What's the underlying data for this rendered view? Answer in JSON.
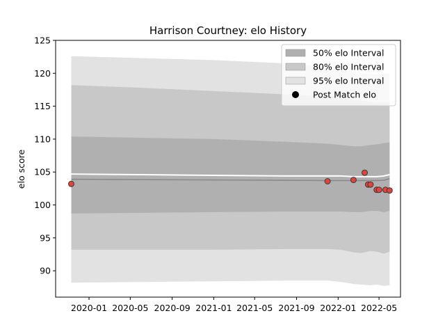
{
  "chart_data": {
    "type": "line",
    "title": "Harrison Courtney: elo History",
    "xlabel": "",
    "ylabel": "elo score",
    "ylim": [
      86,
      125
    ],
    "xlim": [
      "2019-09-25",
      "2022-07-03"
    ],
    "y_ticks": [
      90,
      95,
      100,
      105,
      110,
      115,
      120,
      125
    ],
    "x_ticks": [
      "2020-01",
      "2020-05",
      "2020-09",
      "2021-01",
      "2021-05",
      "2021-09",
      "2022-01",
      "2022-05"
    ],
    "grid": false,
    "legend": {
      "placement": "top-right",
      "entries": [
        {
          "label": "50% elo Interval",
          "color": "#b0b0b0",
          "kind": "band"
        },
        {
          "label": "80% elo Interval",
          "color": "#c8c8c8",
          "kind": "band"
        },
        {
          "label": "95% elo Interval",
          "color": "#e2e2e2",
          "kind": "band"
        },
        {
          "label": "Post Match elo",
          "color": "#000000",
          "kind": "marker"
        }
      ]
    },
    "colors": {
      "band95": "#e2e2e2",
      "band80": "#c8c8c8",
      "band50": "#b0b0b0",
      "mean_line": "#ffffff",
      "median_line": "#888888",
      "point_fill": "#e0443c",
      "point_edge": "#3a3a3a"
    },
    "bands": {
      "x": [
        "2019-11-10",
        "2020-06-01",
        "2021-01-01",
        "2021-08-01",
        "2021-12-01",
        "2022-01-10",
        "2022-02-15",
        "2022-03-10",
        "2022-04-05",
        "2022-04-25",
        "2022-05-15",
        "2022-06-01"
      ],
      "band95_upper": [
        122.6,
        122.3,
        122.0,
        121.5,
        121.0,
        120.6,
        120.2,
        120.0,
        119.9,
        119.8,
        119.9,
        120.0
      ],
      "band95_lower": [
        88.2,
        88.3,
        88.4,
        88.5,
        88.5,
        88.3,
        88.0,
        87.9,
        87.8,
        87.9,
        87.7,
        87.8
      ],
      "band80_upper": [
        118.2,
        117.8,
        117.3,
        116.8,
        116.5,
        116.3,
        116.1,
        115.9,
        115.7,
        115.6,
        115.6,
        115.6
      ],
      "band80_lower": [
        93.2,
        93.2,
        93.2,
        93.3,
        93.3,
        93.2,
        92.8,
        92.7,
        93.0,
        92.9,
        92.6,
        92.9
      ],
      "band50_upper": [
        110.4,
        110.2,
        110.0,
        109.6,
        109.3,
        109.1,
        108.9,
        108.9,
        109.1,
        109.2,
        109.4,
        109.5
      ],
      "band50_lower": [
        98.7,
        98.8,
        98.9,
        99.0,
        99.0,
        99.0,
        98.9,
        98.9,
        99.1,
        99.1,
        98.9,
        99.1
      ]
    },
    "mean_line": {
      "x": [
        "2019-11-10",
        "2020-06-01",
        "2021-01-01",
        "2021-08-01",
        "2021-12-01",
        "2022-01-10",
        "2022-02-15",
        "2022-03-10",
        "2022-04-05",
        "2022-04-25",
        "2022-05-15",
        "2022-06-01"
      ],
      "y": [
        104.7,
        104.6,
        104.5,
        104.4,
        104.4,
        104.4,
        104.3,
        104.3,
        104.3,
        104.3,
        104.4,
        104.6
      ]
    },
    "median_line": {
      "x": [
        "2019-11-10",
        "2020-06-01",
        "2021-01-01",
        "2021-08-01",
        "2021-12-01",
        "2022-01-10",
        "2022-02-15",
        "2022-03-10",
        "2022-04-05",
        "2022-04-25",
        "2022-05-15",
        "2022-06-01"
      ],
      "y": [
        103.9,
        103.85,
        103.8,
        103.75,
        103.7,
        103.7,
        103.7,
        103.7,
        103.7,
        103.7,
        103.75,
        104.0
      ]
    },
    "points": [
      {
        "x": "2019-11-10",
        "y": 103.2
      },
      {
        "x": "2021-12-01",
        "y": 103.6
      },
      {
        "x": "2022-02-15",
        "y": 103.8
      },
      {
        "x": "2022-03-20",
        "y": 104.9
      },
      {
        "x": "2022-03-30",
        "y": 103.1
      },
      {
        "x": "2022-04-06",
        "y": 103.1
      },
      {
        "x": "2022-04-24",
        "y": 102.3
      },
      {
        "x": "2022-05-01",
        "y": 102.3
      },
      {
        "x": "2022-05-20",
        "y": 102.3
      },
      {
        "x": "2022-06-01",
        "y": 102.2
      }
    ]
  }
}
